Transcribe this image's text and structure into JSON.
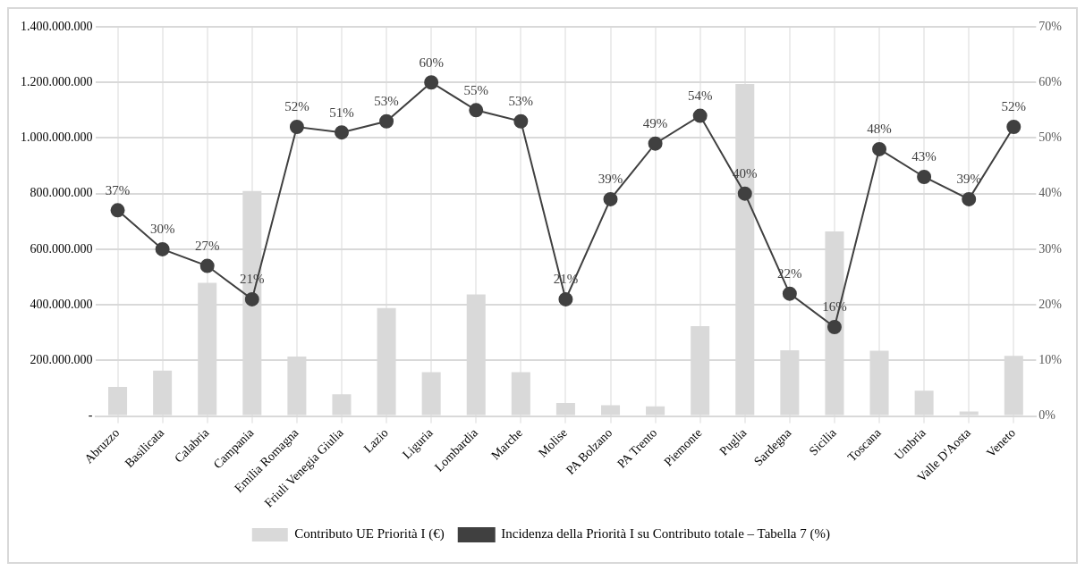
{
  "chart_data": {
    "type": "bar",
    "categories": [
      "Abruzzo",
      "Basilicata",
      "Calabria",
      "Campania",
      "Emilia Romagna",
      "Friuli Venegia Giulia",
      "Lazio",
      "Liguria",
      "Lombardia",
      "Marche",
      "Molise",
      "PA Bolzano",
      "PA Trento",
      "Piemonte",
      "Puglia",
      "Sardegna",
      "Sicilia",
      "Toscana",
      "Umbria",
      "Valle D'Aosta",
      "Veneto"
    ],
    "series": [
      {
        "name": "Contributo UE Priorità I (€)",
        "color": "#d9d9d9",
        "values": [
          105000000,
          163000000,
          479000000,
          809000000,
          214000000,
          78000000,
          388000000,
          158000000,
          437000000,
          158000000,
          47000000,
          39000000,
          35000000,
          323000000,
          1194000000,
          236000000,
          664000000,
          235000000,
          91000000,
          16000000,
          216000000
        ]
      },
      {
        "name": "Incidenza della Priorità I su Contributo totale – Tabella 7 (%)",
        "type": "line",
        "axis": "y2",
        "color": "#404040",
        "marker": "circle",
        "values": [
          37,
          30,
          27,
          21,
          52,
          51,
          53,
          60,
          55,
          53,
          21,
          39,
          49,
          54,
          40,
          22,
          16,
          48,
          43,
          39,
          52
        ],
        "value_labels": [
          "37%",
          "30%",
          "27%",
          "21%",
          "52%",
          "51%",
          "53%",
          "60%",
          "55%",
          "53%",
          "21%",
          "39%",
          "49%",
          "54%",
          "40%",
          "22%",
          "16%",
          "48%",
          "43%",
          "39%",
          "52%"
        ]
      }
    ],
    "ylim": [
      0,
      1400000000
    ],
    "yticks": [
      {
        "value": 0,
        "label": "-"
      },
      {
        "value": 200000000,
        "label": "200.000.000"
      },
      {
        "value": 400000000,
        "label": "400.000.000"
      },
      {
        "value": 600000000,
        "label": "600.000.000"
      },
      {
        "value": 800000000,
        "label": "800.000.000"
      },
      {
        "value": 1000000000,
        "label": "1.000.000.000"
      },
      {
        "value": 1200000000,
        "label": "1.200.000.000"
      },
      {
        "value": 1400000000,
        "label": "1.400.000.000"
      }
    ],
    "y2lim": [
      0,
      70
    ],
    "y2ticks": [
      {
        "value": 0,
        "label": "0%"
      },
      {
        "value": 10,
        "label": "10%"
      },
      {
        "value": 20,
        "label": "20%"
      },
      {
        "value": 30,
        "label": "30%"
      },
      {
        "value": 40,
        "label": "40%"
      },
      {
        "value": 50,
        "label": "50%"
      },
      {
        "value": 60,
        "label": "60%"
      },
      {
        "value": 70,
        "label": "70%"
      }
    ],
    "grid": true,
    "legend": "bottom"
  }
}
